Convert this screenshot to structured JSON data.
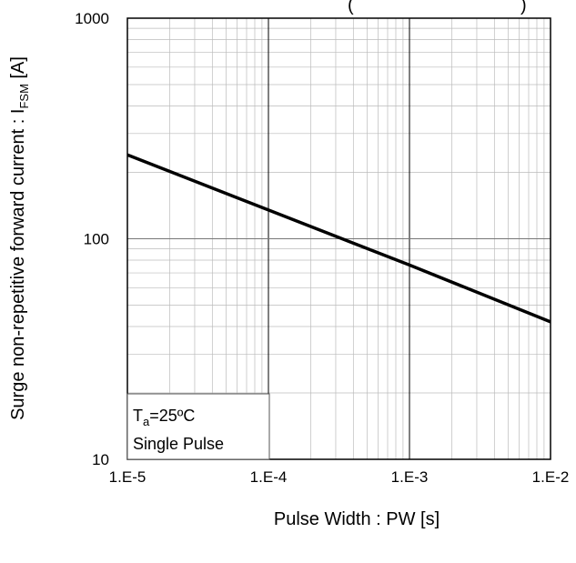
{
  "chart_data": {
    "type": "line",
    "title": "(",
    "title_right": ")",
    "xlabel": "Pulse Width : PW [s]",
    "ylabel_main": "Surge non-repetitive forward current : I",
    "ylabel_sub": "FSM",
    "ylabel_unit": " [A]",
    "x_scale": "log",
    "y_scale": "log",
    "xlim": [
      1e-05,
      0.01
    ],
    "ylim": [
      10,
      1000
    ],
    "x_ticks": [
      1e-05,
      0.0001,
      0.001,
      0.01
    ],
    "x_tick_labels": [
      "1.E-5",
      "1.E-4",
      "1.E-3",
      "1.E-2"
    ],
    "y_ticks": [
      10,
      100,
      1000
    ],
    "y_tick_labels": [
      "10",
      "100",
      "1000"
    ],
    "grid": true,
    "series": [
      {
        "x": [
          1e-05,
          0.0001,
          0.001,
          0.01
        ],
        "y": [
          240,
          135,
          76,
          42
        ],
        "color": "#000000"
      }
    ],
    "annotation": {
      "line1_main": "T",
      "line1_sub": "a",
      "line1_rest": "=25ºC",
      "line2": "Single Pulse",
      "position": "bottom-left"
    }
  }
}
